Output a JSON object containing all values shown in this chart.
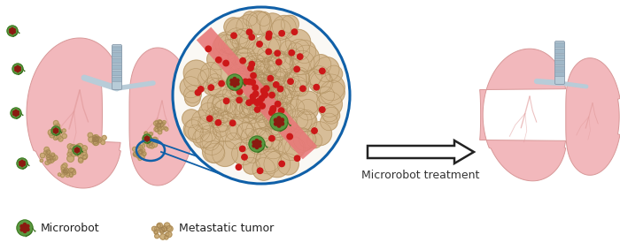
{
  "bg_color": "#ffffff",
  "arrow_label": "Microrobot treatment",
  "legend_microrobot": "Microrobot",
  "legend_tumor": "Metastatic tumor",
  "lung_color": "#f2b8bc",
  "lung_edge_color": "#d89898",
  "lung_inner_color": "#eaa8ac",
  "tumor_color": "#c8a870",
  "tumor_edge_color": "#a08050",
  "microrobot_body_color": "#5a9940",
  "microrobot_spot_color": "#8b1a10",
  "red_dot_color": "#cc1818",
  "zoom_circle_color": "#1060a8",
  "arrow_color": "#222222",
  "blood_vessel_color": "#e87878",
  "cell_color": "#d4b890",
  "cell_edge_color": "#b09060",
  "trachea_color": "#b8ccd8",
  "trachea_edge_color": "#8899aa",
  "vein_color": "#e09898",
  "arrow_label_fontsize": 9,
  "legend_fontsize": 9
}
